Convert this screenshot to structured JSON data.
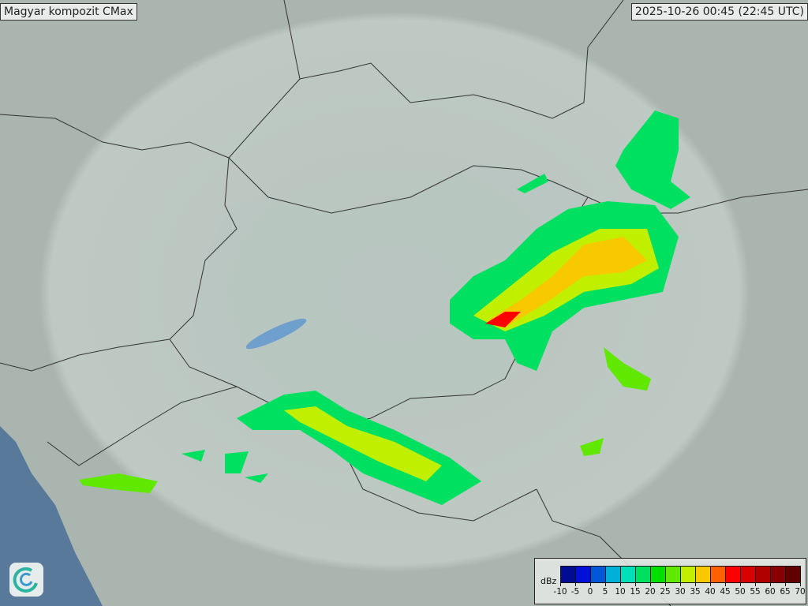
{
  "header": {
    "title": "Magyar kompozit  CMax",
    "timestamp": "2025-10-26 00:45 (22:45 UTC)"
  },
  "logo": {
    "icon": "swirl-logo-icon"
  },
  "legend": {
    "unit": "dBz",
    "ticks": [
      "-10",
      "-5",
      "0",
      "5",
      "10",
      "15",
      "20",
      "25",
      "30",
      "35",
      "40",
      "45",
      "50",
      "55",
      "60",
      "65",
      "70"
    ],
    "colors": [
      "#000c94",
      "#0010d8",
      "#0058d8",
      "#00b0d8",
      "#00e0b8",
      "#00e060",
      "#00e000",
      "#60e800",
      "#c0f000",
      "#f8c800",
      "#ff6000",
      "#ff0000",
      "#d80000",
      "#b00000",
      "#880000",
      "#600000"
    ]
  },
  "map": {
    "land_color": "#a9b5ae",
    "radar_coverage_color": "#c3cfca",
    "sea_color": "#58799a",
    "lake_color": "#6f9fcc",
    "border_color": "#333333"
  }
}
